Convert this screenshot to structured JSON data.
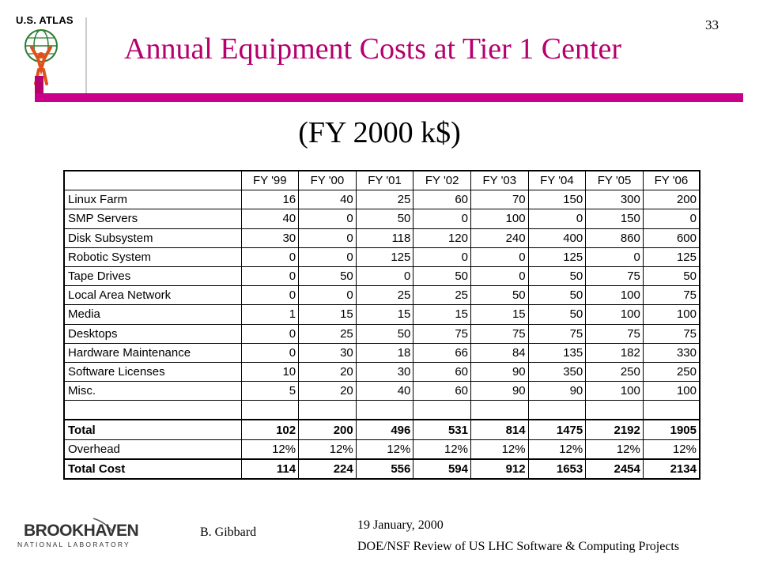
{
  "header": {
    "logo_text": "U.S. ATLAS",
    "slide_number": "33",
    "title": "Annual Equipment Costs at Tier 1 Center",
    "subtitle": "(FY 2000 k$)"
  },
  "colors": {
    "accent": "#c8008a",
    "title": "#b5006e"
  },
  "table": {
    "columns": [
      "",
      "FY '99",
      "FY '00",
      "FY '01",
      "FY '02",
      "FY '03",
      "FY '04",
      "FY '05",
      "FY '06"
    ],
    "rows": [
      [
        "Linux Farm",
        "16",
        "40",
        "25",
        "60",
        "70",
        "150",
        "300",
        "200"
      ],
      [
        "SMP Servers",
        "40",
        "0",
        "50",
        "0",
        "100",
        "0",
        "150",
        "0"
      ],
      [
        "Disk Subsystem",
        "30",
        "0",
        "118",
        "120",
        "240",
        "400",
        "860",
        "600"
      ],
      [
        "Robotic System",
        "0",
        "0",
        "125",
        "0",
        "0",
        "125",
        "0",
        "125"
      ],
      [
        "Tape Drives",
        "0",
        "50",
        "0",
        "50",
        "0",
        "50",
        "75",
        "50"
      ],
      [
        "Local Area Network",
        "0",
        "0",
        "25",
        "25",
        "50",
        "50",
        "100",
        "75"
      ],
      [
        "Media",
        "1",
        "15",
        "15",
        "15",
        "15",
        "50",
        "100",
        "100"
      ],
      [
        "Desktops",
        "0",
        "25",
        "50",
        "75",
        "75",
        "75",
        "75",
        "75"
      ],
      [
        "Hardware Maintenance",
        "0",
        "30",
        "18",
        "66",
        "84",
        "135",
        "182",
        "330"
      ],
      [
        "Software Licenses",
        "10",
        "20",
        "30",
        "60",
        "90",
        "350",
        "250",
        "250"
      ],
      [
        "Misc.",
        "5",
        "20",
        "40",
        "60",
        "90",
        "90",
        "100",
        "100"
      ]
    ],
    "total": [
      "Total",
      "102",
      "200",
      "496",
      "531",
      "814",
      "1475",
      "2192",
      "1905"
    ],
    "overhead": [
      "Overhead",
      "12%",
      "12%",
      "12%",
      "12%",
      "12%",
      "12%",
      "12%",
      "12%"
    ],
    "total_cost": [
      "Total Cost",
      "114",
      "224",
      "556",
      "594",
      "912",
      "1653",
      "2454",
      "2134"
    ]
  },
  "footer": {
    "logo_brand": "BROOKHAVEN",
    "logo_sub": "NATIONAL LABORATORY",
    "author": "B. Gibbard",
    "date": "19 January, 2000",
    "review": "DOE/NSF Review of US LHC Software & Computing Projects"
  }
}
